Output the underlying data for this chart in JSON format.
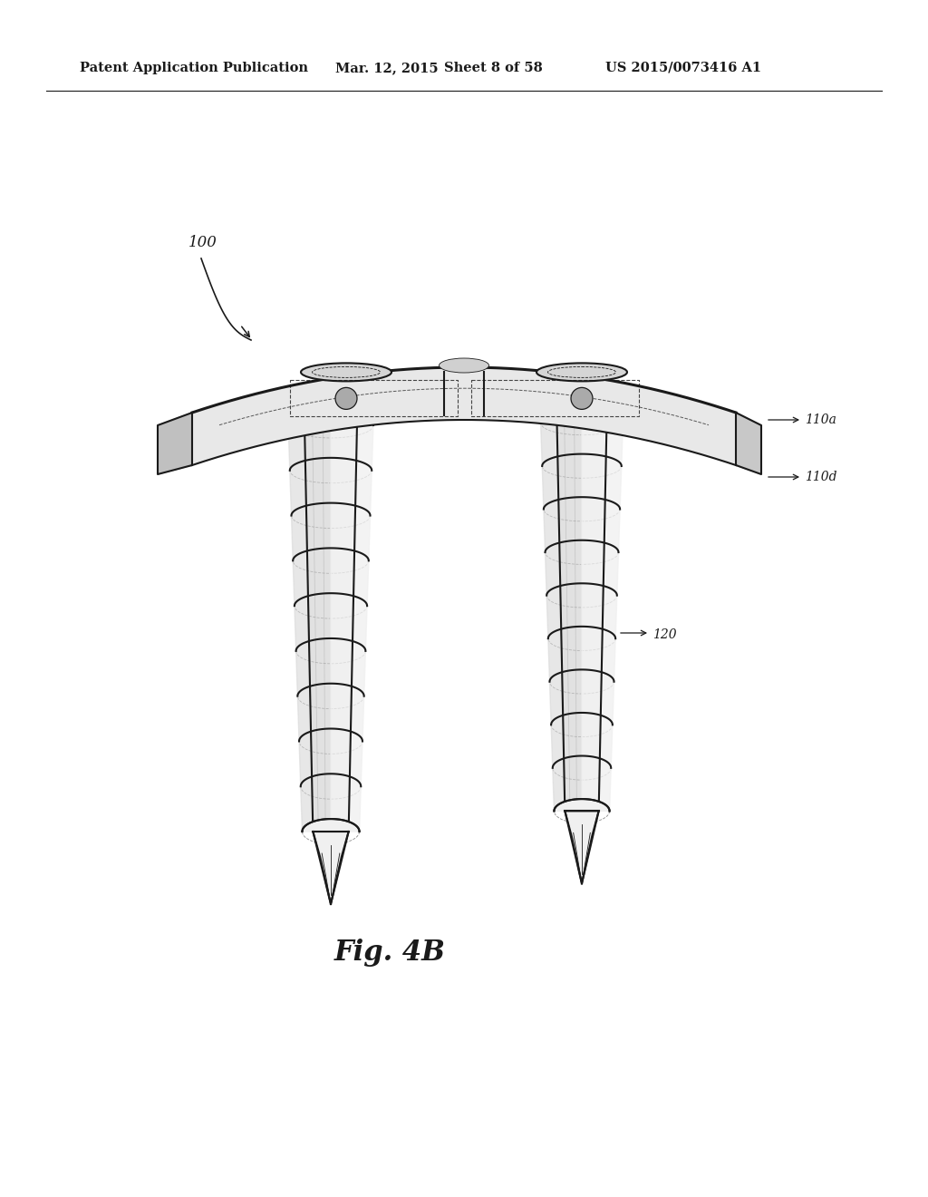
{
  "background_color": "#ffffff",
  "header_text": "Patent Application Publication",
  "header_date": "Mar. 12, 2015",
  "header_sheet": "Sheet 8 of 58",
  "header_patent": "US 2015/0073416 A1",
  "figure_label": "Fig. 4B",
  "ref_100": "100",
  "ref_110a": "110a",
  "ref_110d": "110d",
  "ref_120": "120",
  "text_color": "#1a1a1a",
  "line_color": "#1a1a1a",
  "fill_white": "#ffffff",
  "fill_light": "#f0f0f0",
  "fill_mid": "#d8d8d8",
  "fill_dark": "#b0b0b0"
}
